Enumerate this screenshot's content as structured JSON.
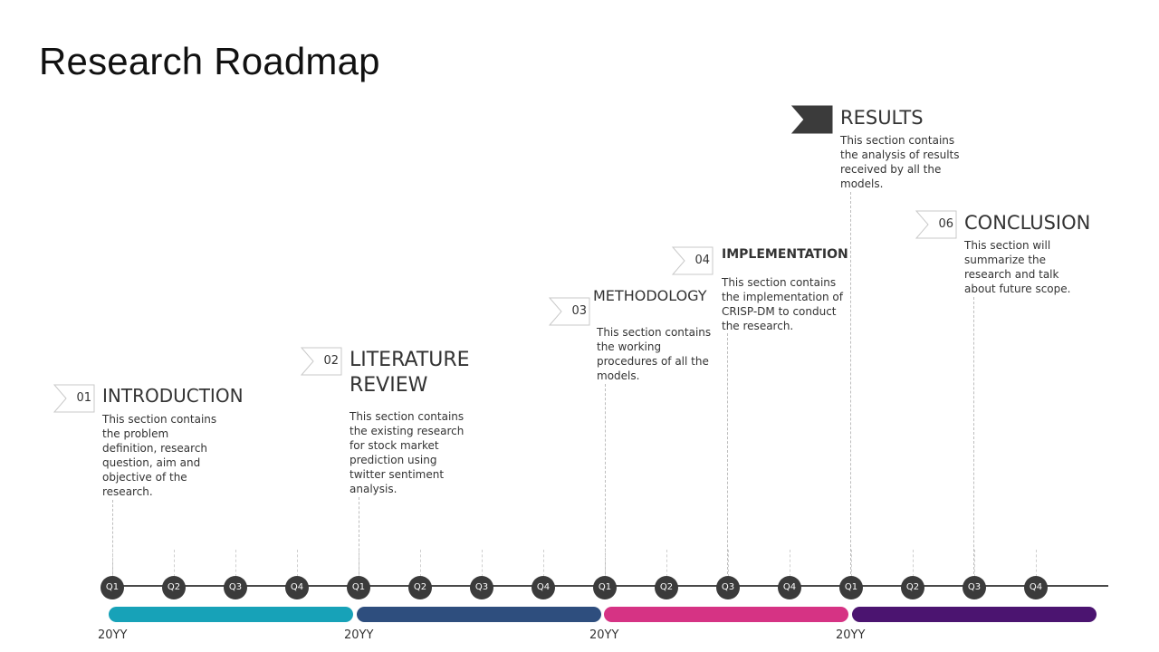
{
  "title": "Research Roadmap",
  "stages": [
    {
      "num": "01",
      "title": "INTRODUCTION",
      "desc": "This section contains the problem definition, research question, aim and objective of the research."
    },
    {
      "num": "02",
      "title": "LITERATURE REVIEW",
      "desc": "This section contains the existing research for stock market prediction using twitter sentiment analysis."
    },
    {
      "num": "03",
      "title": "METHODOLOGY",
      "desc": "This section contains the working procedures of all the models."
    },
    {
      "num": "04",
      "title": "IMPLEMENTATION",
      "desc": "This section contains the implementation of CRISP-DM to conduct the research."
    },
    {
      "num": "",
      "title": "RESULTS",
      "desc": "This section contains the analysis of results received by all the models."
    },
    {
      "num": "06",
      "title": "CONCLUSION",
      "desc": "This section will summarize the research and talk about future scope."
    }
  ],
  "timeline": {
    "quarters": [
      "Q1",
      "Q2",
      "Q3",
      "Q4",
      "Q1",
      "Q2",
      "Q3",
      "Q4",
      "Q1",
      "Q2",
      "Q3",
      "Q4",
      "Q1",
      "Q2",
      "Q3",
      "Q4"
    ],
    "years": [
      "20YY",
      "20YY",
      "20YY",
      "20YY"
    ],
    "bar_colors": [
      "#17a2b8",
      "#2e4e7e",
      "#d63384",
      "#4b1470"
    ]
  },
  "colors": {
    "flag_dark": "#3b3b3b",
    "flag_outline": "#c9c9c9"
  }
}
